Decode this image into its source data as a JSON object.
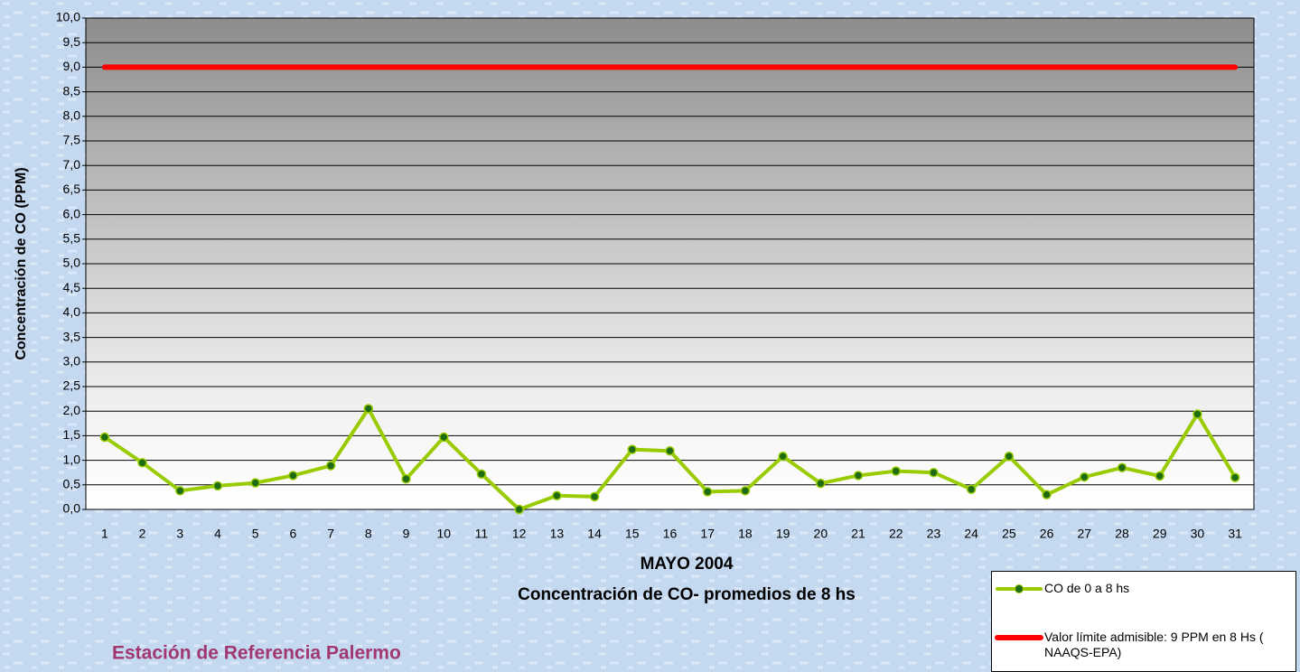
{
  "chart_data": {
    "type": "line",
    "y_label": "Concentración de CO (PPM)",
    "x_label": "MAYO 2004",
    "subtitle": "Concentración de CO- promedios de 8 hs",
    "categories": [
      "1",
      "2",
      "3",
      "4",
      "5",
      "6",
      "7",
      "8",
      "9",
      "10",
      "11",
      "12",
      "13",
      "14",
      "15",
      "16",
      "17",
      "18",
      "19",
      "20",
      "21",
      "22",
      "23",
      "24",
      "25",
      "26",
      "27",
      "28",
      "29",
      "30",
      "31"
    ],
    "series": [
      {
        "name": "CO de 0 a 8 hs",
        "color": "#99cc00",
        "marker": true,
        "values": [
          1.47,
          0.95,
          0.38,
          0.48,
          0.54,
          0.69,
          0.89,
          2.05,
          0.62,
          1.47,
          0.72,
          0.0,
          0.28,
          0.26,
          1.22,
          1.19,
          0.36,
          0.38,
          1.08,
          0.53,
          0.69,
          0.78,
          0.75,
          0.41,
          1.08,
          0.3,
          0.66,
          0.85,
          0.68,
          1.94,
          0.65
        ]
      },
      {
        "name": "Valor límite admisible: 9 PPM en 8 Hs ( NAAQS-EPA)",
        "color": "#ff0000",
        "marker": false,
        "values": [
          9,
          9,
          9,
          9,
          9,
          9,
          9,
          9,
          9,
          9,
          9,
          9,
          9,
          9,
          9,
          9,
          9,
          9,
          9,
          9,
          9,
          9,
          9,
          9,
          9,
          9,
          9,
          9,
          9,
          9,
          9
        ]
      }
    ],
    "ylim": [
      0,
      10
    ],
    "yticks": [
      {
        "value": 0,
        "label": "0,0"
      },
      {
        "value": 0.5,
        "label": "0,5"
      },
      {
        "value": 1,
        "label": "1,0"
      },
      {
        "value": 1.5,
        "label": "1,5"
      },
      {
        "value": 2,
        "label": "2,0"
      },
      {
        "value": 2.5,
        "label": "2,5"
      },
      {
        "value": 3,
        "label": "3,0"
      },
      {
        "value": 3.5,
        "label": "3,5"
      },
      {
        "value": 4,
        "label": "4,0"
      },
      {
        "value": 4.5,
        "label": "4,5"
      },
      {
        "value": 5,
        "label": "5,0"
      },
      {
        "value": 5.5,
        "label": "5,5"
      },
      {
        "value": 6,
        "label": "6,0"
      },
      {
        "value": 6.5,
        "label": "6,5"
      },
      {
        "value": 7,
        "label": "7,0"
      },
      {
        "value": 7.5,
        "label": "7,5"
      },
      {
        "value": 8,
        "label": "8,0"
      },
      {
        "value": 8.5,
        "label": "8,5"
      },
      {
        "value": 9,
        "label": "9,0"
      },
      {
        "value": 9.5,
        "label": "9,5"
      },
      {
        "value": 10,
        "label": "10,0"
      }
    ],
    "grid": true,
    "legend": "bottom-right"
  },
  "caption": "Estación de Referencia Palermo"
}
